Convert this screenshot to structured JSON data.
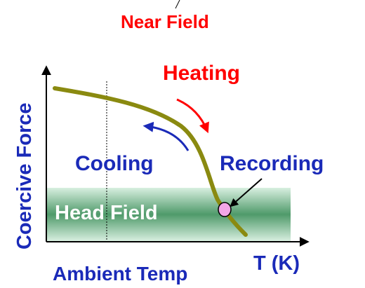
{
  "labels": {
    "near_field": "Near Field",
    "heating": "Heating",
    "cooling": "Cooling",
    "recording": "Recording",
    "head_field": "Head Field",
    "y_axis": "Coercive Force",
    "x_axis": "T (K)",
    "ambient": "Ambient Temp"
  },
  "colors": {
    "near_field": "#ff0000",
    "heating": "#ff0000",
    "cooling": "#1a2ab8",
    "recording": "#1a2ab8",
    "axis_labels": "#1a2ab8",
    "head_field_text": "#ffffff",
    "curve": "#8a8a10",
    "head_band": "#4f9a6a",
    "recording_point": "#f2a6e6"
  }
}
